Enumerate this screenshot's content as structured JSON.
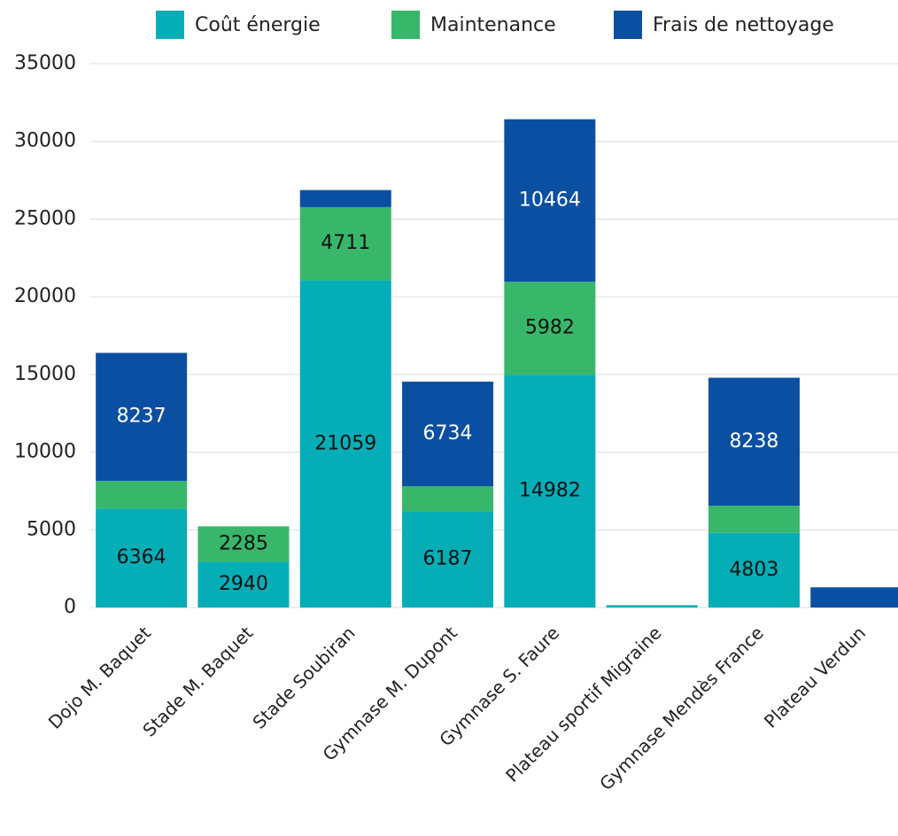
{
  "chart_data": {
    "type": "stacked_bar",
    "categories": [
      "Dojo M. Baquet",
      "Stade M. Baquet",
      "Stade Soubiran",
      "Gymnase M. Dupont",
      "Gymnase S. Faure",
      "Plateau sportif Migraine",
      "Gymnase Mendès France",
      "Plateau Verdun"
    ],
    "series": [
      {
        "name": "Coût énergie",
        "color": "#05adb7",
        "label_color": "#111111",
        "values": [
          6364,
          2940,
          21059,
          6187,
          14982,
          150,
          4803,
          0
        ]
      },
      {
        "name": "Maintenance",
        "color": "#38b76a",
        "label_color": "#111111",
        "values": [
          1790,
          2285,
          4711,
          1620,
          5982,
          0,
          1750,
          0
        ]
      },
      {
        "name": "Frais de nettoyage",
        "color": "#0b4fa3",
        "label_color": "#ffffff",
        "values": [
          8237,
          0,
          1100,
          6734,
          10464,
          0,
          8238,
          1300
        ]
      }
    ],
    "ylim": [
      0,
      35000
    ],
    "yticks": [
      0,
      5000,
      10000,
      15000,
      20000,
      25000,
      30000,
      35000
    ],
    "grid": true,
    "legend": "top"
  }
}
